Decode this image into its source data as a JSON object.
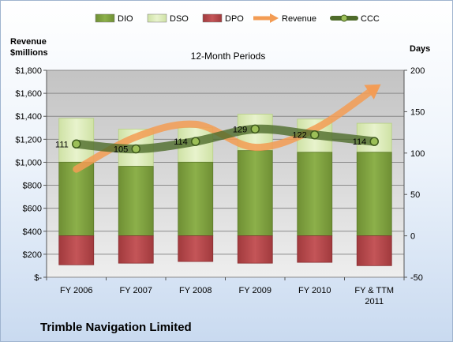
{
  "chart_data": {
    "type": "combo",
    "title": "12-Month Periods",
    "company": "Trimble Navigation Limited",
    "y_left_label_lines": [
      "Revenue",
      "$millions"
    ],
    "y_right_label": "Days",
    "y_left_ticks": [
      "$-",
      "$200",
      "$400",
      "$600",
      "$800",
      "$1,000",
      "$1,200",
      "$1,400",
      "$1,600",
      "$1,800"
    ],
    "y_left_range": [
      0,
      1800
    ],
    "y_right_ticks": [
      "-50",
      "0",
      "50",
      "100",
      "150",
      "200"
    ],
    "y_right_range": [
      -50,
      200
    ],
    "categories": [
      [
        "FY 2006"
      ],
      [
        "FY 2007"
      ],
      [
        "FY 2008"
      ],
      [
        "FY 2009"
      ],
      [
        "FY 2010"
      ],
      [
        "FY & TTM",
        "2011"
      ]
    ],
    "legend": [
      "DIO",
      "DSO",
      "DPO",
      "Revenue",
      "CCC"
    ],
    "series": [
      {
        "name": "DIO",
        "kind": "stacked-bar",
        "axis": "right",
        "values": [
          89,
          84,
          89,
          103,
          101,
          101
        ],
        "color": "#77993b"
      },
      {
        "name": "DSO",
        "kind": "stacked-bar",
        "axis": "right",
        "values": [
          53,
          45,
          42,
          44,
          40,
          35
        ],
        "color": "#d9ebb4"
      },
      {
        "name": "DPO",
        "kind": "negative-bar",
        "axis": "right",
        "values": [
          -35,
          -33,
          -31,
          -33,
          -32,
          -36
        ],
        "color": "#b8484b"
      },
      {
        "name": "Revenue",
        "kind": "arrow-line",
        "axis": "left",
        "values": [
          940,
          1220,
          1330,
          1130,
          1290,
          1640
        ],
        "color": "#f39c54"
      },
      {
        "name": "CCC",
        "kind": "line",
        "axis": "right",
        "values": [
          111,
          105,
          114,
          129,
          122,
          114
        ],
        "labels": [
          "111",
          "105",
          "114",
          "129",
          "122",
          "114"
        ],
        "color": "#4e6b2a"
      }
    ]
  }
}
